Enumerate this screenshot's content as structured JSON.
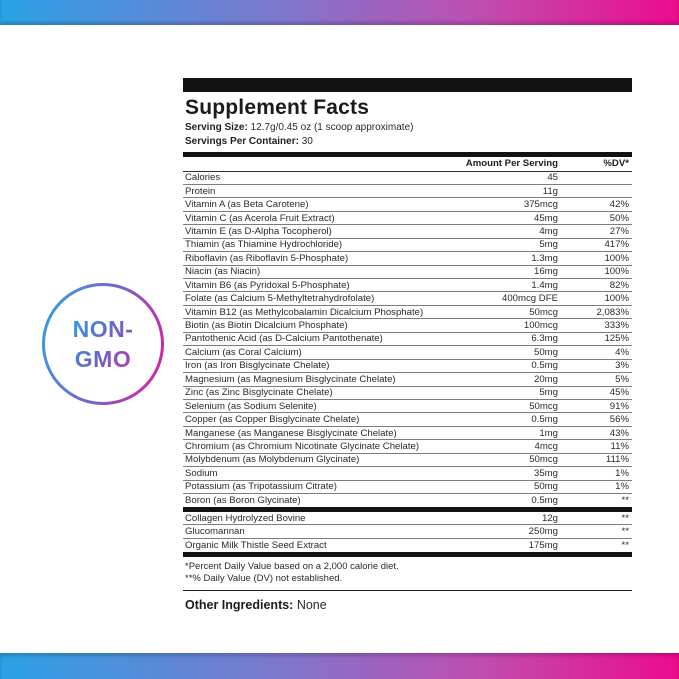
{
  "badge": {
    "line1": "NON-",
    "line2": "GMO"
  },
  "colors": {
    "gradient_blue": "#2BA2E6",
    "gradient_magenta": "#EC0A8E",
    "gradient_purple_mid": "#7E5EC2",
    "bar_black": "#121212"
  },
  "panel": {
    "title": "Supplement Facts",
    "serving_size_label": "Serving Size:",
    "serving_size_value": "12.7g/0.45 oz (1 scoop approximate)",
    "servings_label": "Servings Per Container:",
    "servings_value": "30",
    "columns": {
      "amount": "Amount Per Serving",
      "dv": "%DV*"
    },
    "rows": [
      {
        "name": "Calories",
        "amount": "45",
        "dv": ""
      },
      {
        "name": "Protein",
        "amount": "11g",
        "dv": ""
      },
      {
        "name": "Vitamin A (as Beta Carotene)",
        "amount": "375mcg",
        "dv": "42%"
      },
      {
        "name": "Vitamin C (as Acerola Fruit Extract)",
        "amount": "45mg",
        "dv": "50%"
      },
      {
        "name": "Vitamin E (as D-Alpha Tocopherol)",
        "amount": "4mg",
        "dv": "27%"
      },
      {
        "name": "Thiamin (as Thiamine Hydrochloride)",
        "amount": "5mg",
        "dv": "417%"
      },
      {
        "name": "Riboflavin (as Riboflavin 5-Phosphate)",
        "amount": "1.3mg",
        "dv": "100%"
      },
      {
        "name": "Niacin (as Niacin)",
        "amount": "16mg",
        "dv": "100%"
      },
      {
        "name": "Vitamin B6 (as Pyridoxal 5-Phosphate)",
        "amount": "1.4mg",
        "dv": "82%"
      },
      {
        "name": "Folate (as Calcium 5-Methyltetrahydrofolate)",
        "amount": "400mcg DFE",
        "dv": "100%"
      },
      {
        "name": "Vitamin B12 (as Methylcobalamin Dicalcium Phosphate)",
        "amount": "50mcg",
        "dv": "2,083%"
      },
      {
        "name": "Biotin (as Biotin Dicalcium Phosphate)",
        "amount": "100mcg",
        "dv": "333%"
      },
      {
        "name": "Pantothenic Acid (as D-Calcium Pantothenate)",
        "amount": "6.3mg",
        "dv": "125%"
      },
      {
        "name": "Calcium (as Coral Calcium)",
        "amount": "50mg",
        "dv": "4%"
      },
      {
        "name": "Iron (as Iron Bisglycinate Chelate)",
        "amount": "0.5mg",
        "dv": "3%"
      },
      {
        "name": "Magnesium (as Magnesium Bisglycinate Chelate)",
        "amount": "20mg",
        "dv": "5%"
      },
      {
        "name": "Zinc (as Zinc Bisglycinate Chelate)",
        "amount": "5mg",
        "dv": "45%"
      },
      {
        "name": "Selenium (as Sodium Selenite)",
        "amount": "50mcg",
        "dv": "91%"
      },
      {
        "name": "Copper (as Copper Bisglycinate Chelate)",
        "amount": "0.5mg",
        "dv": "56%"
      },
      {
        "name": "Manganese (as Manganese Bisglycinate Chelate)",
        "amount": "1mg",
        "dv": "43%"
      },
      {
        "name": "Chromium (as Chromium Nicotinate Glycinate Chelate)",
        "amount": "4mcg",
        "dv": "11%"
      },
      {
        "name": "Molybdenum (as Molybdenum Glycinate)",
        "amount": "50mcg",
        "dv": "111%"
      },
      {
        "name": "Sodium",
        "amount": "35mg",
        "dv": "1%"
      },
      {
        "name": "Potassium (as Tripotassium Citrate)",
        "amount": "50mg",
        "dv": "1%"
      },
      {
        "name": "Boron (as Boron Glycinate)",
        "amount": "0.5mg",
        "dv": "**"
      }
    ],
    "extra_rows": [
      {
        "name": "Collagen Hydrolyzed Bovine",
        "amount": "12g",
        "dv": "**"
      },
      {
        "name": "Glucomannan",
        "amount": "250mg",
        "dv": "**"
      },
      {
        "name": "Organic Milk Thistle Seed Extract",
        "amount": "175mg",
        "dv": "**"
      }
    ],
    "footnotes": [
      "*Percent Daily Value based on a 2,000 calorie diet.",
      "**% Daily Value (DV) not established."
    ],
    "other_label": "Other Ingredients:",
    "other_value": "None"
  }
}
